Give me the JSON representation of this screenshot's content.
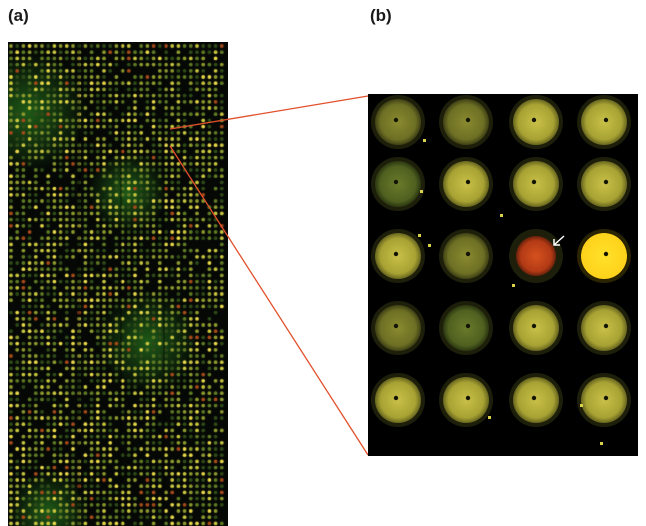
{
  "labels": {
    "panel_a": "(a)",
    "panel_b": "(b)"
  },
  "colors": {
    "background": "#ffffff",
    "array_background": "#050805",
    "zoom_line": "#e2502b",
    "spot_yellow": "#b8b23a",
    "spot_bright_yellow": "#ffd21a",
    "spot_red": "#c8431c",
    "spot_green": "#3a5a1c"
  },
  "zoom_grid": {
    "rows": 5,
    "cols": 4,
    "spots": [
      [
        "dark-yellow",
        "dark-yellow",
        "yellow",
        "yellow"
      ],
      [
        "dark-green",
        "yellow",
        "yellow",
        "yellow"
      ],
      [
        "yellow",
        "dark-yellow",
        "red",
        "bright-yellow"
      ],
      [
        "dark-yellow",
        "dark-green",
        "yellow",
        "yellow"
      ],
      [
        "yellow",
        "yellow",
        "yellow",
        "yellow"
      ]
    ],
    "highlighted_spot": "red",
    "arrow_icon": "arrow-down-left-icon"
  },
  "overview_array": {
    "description_icon": "microarray-overview",
    "dominant_colors": [
      "green",
      "yellow",
      "red"
    ]
  }
}
